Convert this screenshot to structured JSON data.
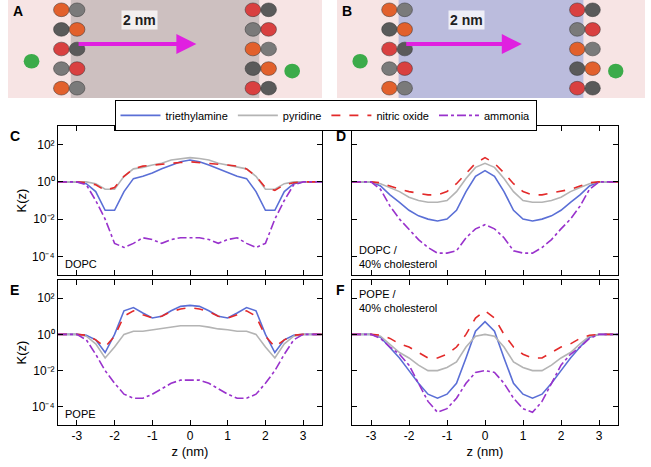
{
  "chart_data": [
    {
      "type": "snapshot",
      "label": "A",
      "annotation": "2 nm",
      "color": "#7f7f7f"
    },
    {
      "type": "snapshot",
      "label": "B",
      "annotation": "2 nm",
      "color": "#4a72d0"
    },
    {
      "type": "line",
      "label": "C",
      "annotation": [
        "DOPC"
      ],
      "y_label": "K(z)",
      "log": "y",
      "tick_labels": "y",
      "legend": "top",
      "xlim": [
        -3.5,
        3.5
      ],
      "xticks": [
        -3,
        -2,
        -1,
        0,
        1,
        2,
        3
      ],
      "ylim": [
        1e-05,
        1000
      ],
      "yticks": [
        {
          "value": 0.0001,
          "label": "10⁻⁴"
        },
        {
          "value": 0.01,
          "label": "10⁻²"
        },
        {
          "value": 1,
          "label": "10⁰"
        },
        {
          "value": 100,
          "label": "10²"
        }
      ],
      "x": [
        -3.5,
        -3.25,
        -3,
        -2.75,
        -2.5,
        -2.25,
        -2,
        -1.75,
        -1.5,
        -1.25,
        -1,
        -0.75,
        -0.5,
        -0.25,
        0,
        0.25,
        0.5,
        0.75,
        1,
        1.25,
        1.5,
        1.75,
        2,
        2.25,
        2.5,
        2.75,
        3,
        3.25,
        3.5
      ],
      "series": [
        {
          "name": "triethylamine",
          "color": "#5a6fd6",
          "line_style": "solid",
          "values": [
            1,
            1,
            1,
            0.8,
            0.3,
            0.03,
            0.03,
            0.3,
            1.5,
            2,
            3,
            5,
            8,
            12,
            15,
            12,
            8,
            5,
            3,
            2,
            1.5,
            0.3,
            0.03,
            0.03,
            0.3,
            0.8,
            1,
            1,
            1
          ]
        },
        {
          "name": "pyridine",
          "color": "#b4b4b4",
          "line_style": "solid",
          "values": [
            1,
            1,
            1,
            1,
            0.8,
            0.4,
            0.4,
            2,
            5,
            6,
            8,
            10,
            15,
            18,
            20,
            18,
            15,
            10,
            8,
            6,
            5,
            2,
            0.4,
            0.4,
            0.8,
            1,
            1,
            1,
            1
          ]
        },
        {
          "name": "nitric oxide",
          "color": "#e32a2a",
          "line_style": "dashed",
          "values": [
            1,
            1,
            1,
            0.9,
            0.7,
            0.35,
            0.5,
            2,
            5,
            7,
            8,
            9,
            10,
            11,
            12,
            11,
            10,
            9,
            8,
            7,
            5,
            2,
            0.5,
            0.35,
            0.7,
            0.9,
            1,
            1,
            1
          ]
        },
        {
          "name": "ammonia",
          "color": "#9932cc",
          "line_style": "dashdot",
          "values": [
            1,
            1,
            1,
            0.7,
            0.1,
            0.01,
            0.0005,
            0.0003,
            0.0005,
            0.001,
            0.0008,
            0.0005,
            0.0008,
            0.001,
            0.001,
            0.001,
            0.0008,
            0.0005,
            0.0008,
            0.001,
            0.0005,
            0.0003,
            0.0005,
            0.01,
            0.1,
            0.7,
            1,
            1,
            1
          ]
        }
      ]
    },
    {
      "type": "line",
      "label": "D",
      "annotation": [
        "DOPC /",
        "40% cholesterol"
      ],
      "log": "y",
      "tick_labels": false,
      "xlim": [
        -3.5,
        3.5
      ],
      "xticks": [
        -3,
        -2,
        -1,
        0,
        1,
        2,
        3
      ],
      "ylim": [
        1e-05,
        1000
      ],
      "yticks": [
        {
          "value": 0.0001,
          "label": "10⁻⁴"
        },
        {
          "value": 0.01,
          "label": "10⁻²"
        },
        {
          "value": 1,
          "label": "10⁰"
        },
        {
          "value": 100,
          "label": "10²"
        }
      ],
      "x": [
        -3.5,
        -3.25,
        -3,
        -2.75,
        -2.5,
        -2.25,
        -2,
        -1.75,
        -1.5,
        -1.25,
        -1,
        -0.75,
        -0.5,
        -0.25,
        0,
        0.25,
        0.5,
        0.75,
        1,
        1.25,
        1.5,
        1.75,
        2,
        2.25,
        2.5,
        2.75,
        3,
        3.25,
        3.5
      ],
      "series": [
        {
          "name": "triethylamine",
          "color": "#5a6fd6",
          "line_style": "solid",
          "values": [
            1,
            1,
            1,
            0.6,
            0.2,
            0.08,
            0.03,
            0.015,
            0.01,
            0.008,
            0.01,
            0.03,
            0.3,
            2,
            4,
            2,
            0.3,
            0.03,
            0.01,
            0.008,
            0.01,
            0.015,
            0.03,
            0.08,
            0.2,
            0.6,
            1,
            1,
            1
          ]
        },
        {
          "name": "pyridine",
          "color": "#b4b4b4",
          "line_style": "solid",
          "values": [
            1,
            1,
            1,
            0.8,
            0.5,
            0.3,
            0.15,
            0.1,
            0.08,
            0.08,
            0.1,
            0.3,
            1.5,
            6,
            10,
            6,
            1.5,
            0.3,
            0.1,
            0.08,
            0.08,
            0.1,
            0.15,
            0.3,
            0.5,
            0.8,
            1,
            1,
            1
          ]
        },
        {
          "name": "nitric oxide",
          "color": "#e32a2a",
          "line_style": "dashed",
          "values": [
            1,
            1,
            1,
            0.9,
            0.6,
            0.4,
            0.3,
            0.25,
            0.2,
            0.2,
            0.3,
            0.8,
            3,
            10,
            20,
            10,
            3,
            0.8,
            0.3,
            0.2,
            0.2,
            0.25,
            0.3,
            0.4,
            0.6,
            0.9,
            1,
            1,
            1
          ]
        },
        {
          "name": "ammonia",
          "color": "#9932cc",
          "line_style": "dashdot",
          "values": [
            1,
            1,
            1,
            0.4,
            0.05,
            0.01,
            0.003,
            0.0008,
            0.0003,
            0.00015,
            0.00015,
            0.0002,
            0.001,
            0.003,
            0.005,
            0.003,
            0.001,
            0.0002,
            0.00015,
            0.00015,
            0.0003,
            0.0008,
            0.003,
            0.01,
            0.05,
            0.4,
            1,
            1,
            1
          ]
        }
      ]
    },
    {
      "type": "line",
      "label": "E",
      "annotation": [
        "POPE"
      ],
      "x_label": "z (nm)",
      "y_label": "K(z)",
      "log": "y",
      "xlim": [
        -3.5,
        3.5
      ],
      "xticks": [
        -3,
        -2,
        -1,
        0,
        1,
        2,
        3
      ],
      "ylim": [
        1e-05,
        1000
      ],
      "yticks": [
        {
          "value": 0.0001,
          "label": "10⁻⁴"
        },
        {
          "value": 0.01,
          "label": "10⁻²"
        },
        {
          "value": 1,
          "label": "10⁰"
        },
        {
          "value": 100,
          "label": "10²"
        }
      ],
      "x": [
        -3.5,
        -3.25,
        -3,
        -2.75,
        -2.5,
        -2.25,
        -2,
        -1.75,
        -1.5,
        -1.25,
        -1,
        -0.75,
        -0.5,
        -0.25,
        0,
        0.25,
        0.5,
        0.75,
        1,
        1.25,
        1.5,
        1.75,
        2,
        2.25,
        2.5,
        2.75,
        3,
        3.25,
        3.5
      ],
      "series": [
        {
          "name": "triethylamine",
          "color": "#5a6fd6",
          "line_style": "solid",
          "values": [
            1,
            1,
            1,
            0.9,
            0.5,
            0.1,
            1,
            20,
            30,
            15,
            8,
            10,
            20,
            35,
            40,
            35,
            20,
            10,
            8,
            15,
            30,
            20,
            1,
            0.1,
            0.5,
            0.9,
            1,
            1,
            1
          ]
        },
        {
          "name": "pyridine",
          "color": "#b4b4b4",
          "line_style": "solid",
          "values": [
            1,
            1,
            1,
            0.8,
            0.3,
            0.05,
            0.2,
            1,
            1.5,
            1.5,
            1.8,
            2,
            2.5,
            3,
            3,
            3,
            2.5,
            2,
            1.8,
            1.5,
            1.5,
            1,
            0.2,
            0.05,
            0.3,
            0.8,
            1,
            1,
            1
          ]
        },
        {
          "name": "nitric oxide",
          "color": "#e32a2a",
          "line_style": "dashed",
          "values": [
            1,
            1,
            1,
            0.9,
            0.5,
            0.2,
            0.8,
            10,
            20,
            12,
            8,
            10,
            18,
            25,
            30,
            25,
            18,
            10,
            8,
            12,
            20,
            10,
            0.8,
            0.2,
            0.5,
            0.9,
            1,
            1,
            1
          ]
        },
        {
          "name": "ammonia",
          "color": "#9932cc",
          "line_style": "dashdot",
          "values": [
            1,
            1,
            1,
            0.5,
            0.08,
            0.01,
            0.002,
            0.0005,
            0.0003,
            0.0003,
            0.0005,
            0.001,
            0.002,
            0.003,
            0.003,
            0.003,
            0.002,
            0.001,
            0.0005,
            0.0003,
            0.0003,
            0.0005,
            0.002,
            0.01,
            0.08,
            0.5,
            1,
            1,
            1
          ]
        }
      ]
    },
    {
      "type": "line",
      "label": "F",
      "annotation": [
        "POPE /",
        "40% cholesterol"
      ],
      "x_label": "z (nm)",
      "log": "y",
      "tick_labels": "x",
      "xlim": [
        -3.5,
        3.5
      ],
      "xticks": [
        -3,
        -2,
        -1,
        0,
        1,
        2,
        3
      ],
      "ylim": [
        1e-05,
        1000
      ],
      "yticks": [
        {
          "value": 0.0001,
          "label": "10⁻⁴"
        },
        {
          "value": 0.01,
          "label": "10⁻²"
        },
        {
          "value": 1,
          "label": "10⁰"
        },
        {
          "value": 100,
          "label": "10²"
        }
      ],
      "x": [
        -3.5,
        -3.25,
        -3,
        -2.75,
        -2.5,
        -2.25,
        -2,
        -1.75,
        -1.5,
        -1.25,
        -1,
        -0.75,
        -0.5,
        -0.25,
        0,
        0.25,
        0.5,
        0.75,
        1,
        1.25,
        1.5,
        1.75,
        2,
        2.25,
        2.5,
        2.75,
        3,
        3.25,
        3.5
      ],
      "series": [
        {
          "name": "triethylamine",
          "color": "#5a6fd6",
          "line_style": "solid",
          "values": [
            1,
            1,
            1,
            0.7,
            0.2,
            0.05,
            0.01,
            0.002,
            0.0005,
            0.0003,
            0.0005,
            0.002,
            0.05,
            1.5,
            5,
            1.5,
            0.05,
            0.002,
            0.0005,
            0.0003,
            0.0005,
            0.002,
            0.01,
            0.05,
            0.2,
            0.7,
            1,
            1,
            1
          ]
        },
        {
          "name": "pyridine",
          "color": "#b4b4b4",
          "line_style": "solid",
          "values": [
            1,
            1,
            1,
            0.8,
            0.3,
            0.1,
            0.05,
            0.02,
            0.01,
            0.01,
            0.015,
            0.03,
            0.2,
            0.8,
            1,
            0.8,
            0.2,
            0.03,
            0.015,
            0.01,
            0.01,
            0.02,
            0.05,
            0.1,
            0.3,
            0.8,
            1,
            1,
            1
          ]
        },
        {
          "name": "nitric oxide",
          "color": "#e32a2a",
          "line_style": "dashed",
          "values": [
            1,
            1,
            1,
            0.9,
            0.6,
            0.3,
            0.2,
            0.1,
            0.05,
            0.05,
            0.08,
            0.2,
            1,
            8,
            20,
            8,
            1,
            0.2,
            0.08,
            0.05,
            0.05,
            0.1,
            0.2,
            0.3,
            0.6,
            0.9,
            1,
            1,
            1
          ]
        },
        {
          "name": "ammonia",
          "color": "#9932cc",
          "line_style": "dashdot",
          "values": [
            1,
            1,
            1,
            0.6,
            0.2,
            0.08,
            0.02,
            0.002,
            0.0002,
            5e-05,
            8e-05,
            0.0003,
            0.002,
            0.008,
            0.01,
            0.008,
            0.002,
            0.0003,
            8e-05,
            5e-05,
            0.0002,
            0.002,
            0.02,
            0.08,
            0.2,
            0.6,
            1,
            1,
            1
          ]
        }
      ]
    }
  ]
}
